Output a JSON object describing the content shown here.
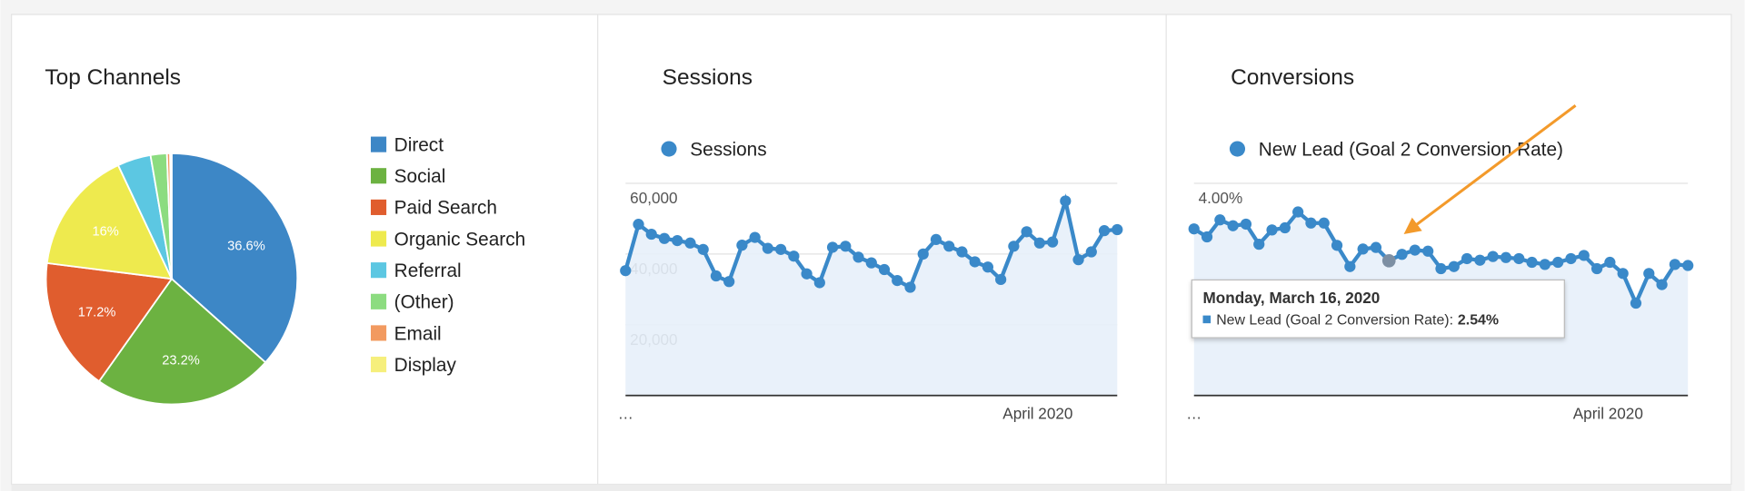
{
  "chart_data": [
    {
      "type": "pie",
      "title": "Top Channels",
      "categories": [
        "Direct",
        "Social",
        "Paid Search",
        "Organic Search",
        "Referral",
        "(Other)",
        "Email",
        "Display"
      ],
      "values": [
        36.6,
        23.2,
        17.2,
        16,
        4.3,
        2.1,
        0.4,
        0.2
      ],
      "value_labels": [
        "36.6%",
        "23.2%",
        "17.2%",
        "16%",
        null,
        null,
        null,
        null
      ],
      "colors": [
        "#3d87c6",
        "#6cb241",
        "#e05d2e",
        "#eeea4e",
        "#5cc7e2",
        "#8cdc80",
        "#f29a60",
        "#f6ef7c"
      ]
    },
    {
      "type": "line",
      "title": "Sessions",
      "categories": [
        "…",
        null,
        null,
        null,
        null,
        null,
        null,
        null,
        null,
        null,
        null,
        null,
        null,
        null,
        null,
        null,
        null,
        null,
        null,
        null,
        null,
        null,
        null,
        null,
        null,
        null,
        null,
        null,
        null,
        null,
        null,
        "April 2020",
        null,
        null,
        null,
        null,
        null,
        null,
        null
      ],
      "series": [
        {
          "name": "Sessions",
          "color": "#3a89c9",
          "values": [
            35300,
            48400,
            45600,
            44400,
            43800,
            43100,
            41300,
            33800,
            32200,
            42500,
            44700,
            41600,
            41300,
            39400,
            34400,
            31900,
            41900,
            42200,
            39100,
            37500,
            35600,
            32500,
            30600,
            40000,
            44100,
            42200,
            40600,
            37800,
            36300,
            32800,
            42200,
            46300,
            43100,
            43400,
            55000,
            38400,
            40600,
            46600,
            46900
          ]
        }
      ],
      "ylim": [
        0,
        60000
      ],
      "yticks": [
        {
          "value": 20000,
          "label": "20,000"
        },
        {
          "value": 40000,
          "label": "40,000"
        },
        {
          "value": 60000,
          "label": "60,000"
        }
      ],
      "grid": true
    },
    {
      "type": "line",
      "title": "Conversions",
      "categories": [
        "…",
        null,
        null,
        null,
        null,
        null,
        null,
        null,
        null,
        null,
        null,
        null,
        null,
        null,
        null,
        null,
        null,
        null,
        null,
        null,
        null,
        null,
        null,
        null,
        null,
        null,
        null,
        null,
        null,
        null,
        null,
        "April 2020",
        null,
        null,
        null,
        null,
        null,
        null,
        null
      ],
      "series": [
        {
          "name": "New Lead (Goal 2 Conversion Rate)",
          "color": "#3a89c9",
          "values": [
            3.14,
            2.99,
            3.31,
            3.2,
            3.23,
            2.85,
            3.12,
            3.16,
            3.46,
            3.25,
            3.25,
            2.83,
            2.43,
            2.76,
            2.79,
            2.54,
            2.66,
            2.74,
            2.72,
            2.39,
            2.43,
            2.58,
            2.55,
            2.62,
            2.6,
            2.58,
            2.51,
            2.47,
            2.51,
            2.58,
            2.64,
            2.39,
            2.51,
            2.3,
            1.74,
            2.3,
            2.09,
            2.47,
            2.45
          ],
          "value_labels": [
            null,
            null,
            null,
            null,
            null,
            null,
            null,
            null,
            null,
            null,
            null,
            null,
            null,
            null,
            null,
            "2.54%",
            null,
            null,
            null,
            null,
            null,
            null,
            null,
            null,
            null,
            null,
            null,
            null,
            null,
            null,
            null,
            null,
            null,
            null,
            null,
            null,
            null,
            null,
            null
          ]
        }
      ],
      "ylim": [
        0,
        4
      ],
      "yticks": [
        {
          "value": 4,
          "label": "4.00%"
        }
      ],
      "grid": true,
      "tooltip": {
        "title": "Monday, March 16, 2020",
        "label": "New Lead (Goal 2 Conversion Rate):"
      }
    }
  ]
}
